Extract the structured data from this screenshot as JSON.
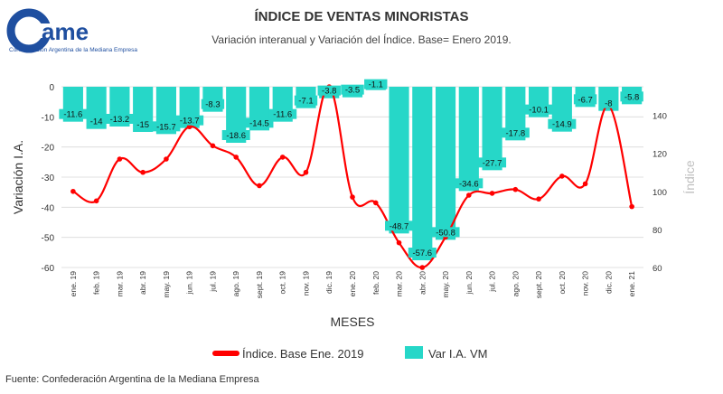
{
  "logo": {
    "name": "came",
    "subtitle": "Confederación Argentina de la Mediana Empresa"
  },
  "source": "Fuente: Confederación Argentina de la Mediana Empresa",
  "colors": {
    "bars": "#26d7c8",
    "line": "#ff0000",
    "logo": "#1f4fa0"
  },
  "chart_data": {
    "type": "bar",
    "title": "ÍNDICE DE VENTAS MINORISTAS",
    "subtitle": "Variación interanual y Variación del Índice. Base= Enero 2019.",
    "xlabel": "MESES",
    "ylabel": "Variación I.A.",
    "y2label": "Índice",
    "categories": [
      "ene. 19",
      "feb. 19",
      "mar. 19",
      "abr. 19",
      "may. 19",
      "jun. 19",
      "jul. 19",
      "ago. 19",
      "sept. 19",
      "oct. 19",
      "nov. 19",
      "dic. 19",
      "ene. 20",
      "feb. 20",
      "mar. 20",
      "abr. 20",
      "may. 20",
      "jun. 20",
      "jul. 20",
      "ago. 20",
      "sept. 20",
      "oct. 20",
      "nov. 20",
      "dic. 20",
      "ene. 21"
    ],
    "ylim": [
      -60,
      0
    ],
    "yticks": [
      0,
      -10,
      -20,
      -30,
      -40,
      -50,
      -60
    ],
    "y2lim": [
      60,
      155
    ],
    "y2ticks": [
      60,
      80,
      100,
      120,
      140
    ],
    "grid": true,
    "legend_position": "bottom",
    "series": [
      {
        "name": "Índice. Base Ene. 2019",
        "kind": "line",
        "axis": "right",
        "values": [
          100,
          95,
          117,
          110,
          117,
          134,
          124,
          118,
          103,
          118,
          110,
          155,
          97,
          94,
          73,
          60,
          76,
          98,
          99,
          101,
          96,
          108,
          104,
          145,
          92
        ]
      },
      {
        "name": "Var I.A. VM",
        "kind": "bar",
        "axis": "left",
        "values": [
          -11.6,
          -14,
          -13.2,
          -15,
          -15.7,
          -13.7,
          -8.3,
          -18.6,
          -14.5,
          -11.6,
          -7.1,
          -3.8,
          -3.5,
          -1.1,
          -48.7,
          -57.6,
          -50.8,
          -34.6,
          -27.7,
          -17.8,
          -10.1,
          -14.9,
          -6.7,
          -8,
          -5.8
        ]
      }
    ]
  }
}
